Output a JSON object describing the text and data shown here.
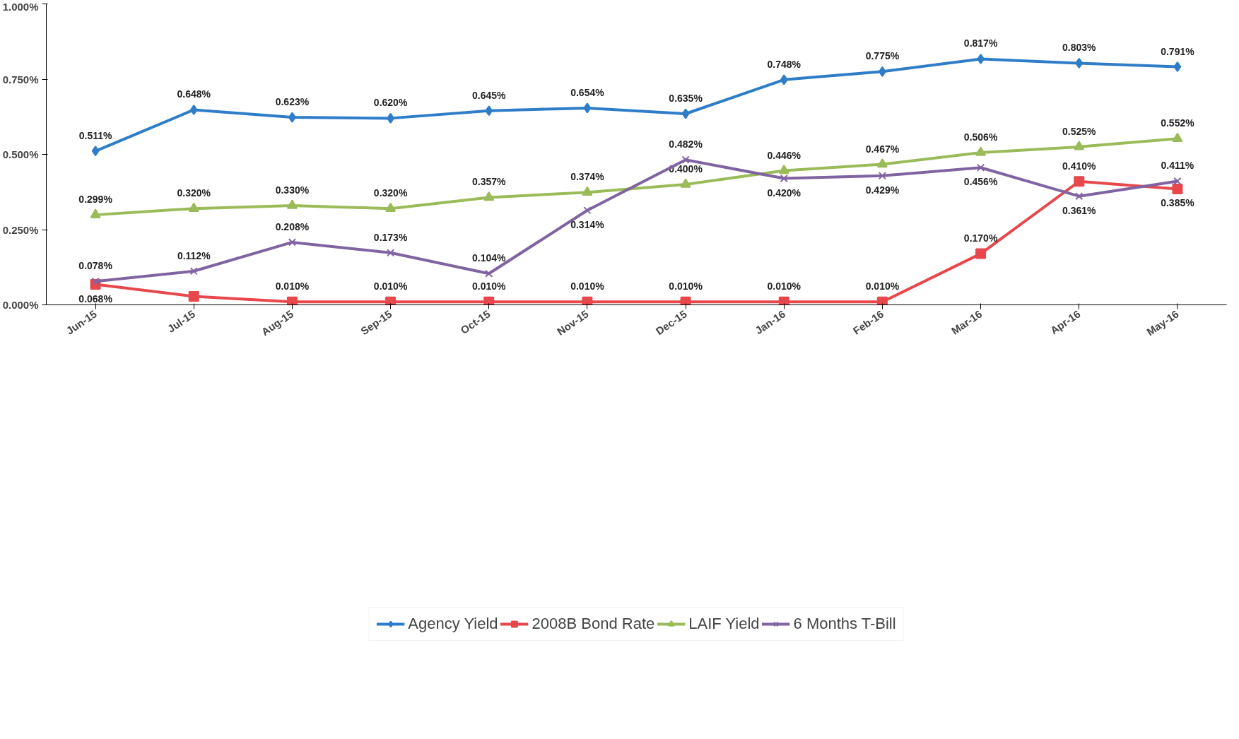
{
  "chart_data": {
    "type": "line",
    "categories": [
      "Jun-15",
      "Jul-15",
      "Aug-15",
      "Sep-15",
      "Oct-15",
      "Nov-15",
      "Dec-15",
      "Jan-16",
      "Feb-16",
      "Mar-16",
      "Apr-16",
      "May-16"
    ],
    "ylim": [
      0,
      1
    ],
    "yticks": [
      {
        "value": 0,
        "label": "0.000%"
      },
      {
        "value": 0.25,
        "label": "0.250%"
      },
      {
        "value": 0.5,
        "label": "0.500%"
      },
      {
        "value": 0.75,
        "label": "0.750%"
      },
      {
        "value": 1,
        "label": "1.000%"
      }
    ],
    "grid": false,
    "legend": "bottom",
    "line_style": "solid",
    "series": [
      {
        "name": "Agency Yield",
        "color": "#2e7dc8",
        "marker": "diamond",
        "values": [
          0.511,
          0.648,
          0.623,
          0.62,
          0.645,
          0.654,
          0.635,
          0.748,
          0.775,
          0.817,
          0.803,
          0.791
        ],
        "value_labels": [
          "0.511%",
          "0.648%",
          "0.623%",
          "0.620%",
          "0.645%",
          "0.654%",
          "0.635%",
          "0.748%",
          "0.775%",
          "0.817%",
          "0.803%",
          "0.791%"
        ]
      },
      {
        "name": "2008B Bond Rate",
        "color": "#e8474c",
        "marker": "square",
        "values": [
          0.068,
          0.028,
          0.01,
          0.01,
          0.01,
          0.01,
          0.01,
          0.01,
          0.01,
          0.17,
          0.41,
          0.385
        ],
        "value_labels": [
          "0.068%",
          null,
          "0.010%",
          "0.010%",
          "0.010%",
          "0.010%",
          "0.010%",
          "0.010%",
          "0.010%",
          "0.170%",
          "0.410%",
          "0.385%"
        ]
      },
      {
        "name": "LAIF Yield",
        "color": "#9bbb59",
        "marker": "triangle",
        "values": [
          0.299,
          0.32,
          0.33,
          0.32,
          0.357,
          0.374,
          0.4,
          0.446,
          0.467,
          0.506,
          0.525,
          0.552
        ],
        "value_labels": [
          "0.299%",
          "0.320%",
          "0.330%",
          "0.320%",
          "0.357%",
          "0.374%",
          "0.400%",
          "0.446%",
          "0.467%",
          "0.506%",
          "0.525%",
          "0.552%"
        ]
      },
      {
        "name": "6 Months T-Bill",
        "color": "#8064a2",
        "marker": "cross",
        "values": [
          0.078,
          0.112,
          0.208,
          0.173,
          0.104,
          0.314,
          0.482,
          0.42,
          0.429,
          0.456,
          0.361,
          0.411
        ],
        "value_labels": [
          "0.078%",
          "0.112%",
          "0.208%",
          "0.173%",
          "0.104%",
          "0.314%",
          "0.482%",
          "0.420%",
          "0.429%",
          "0.456%",
          "0.361%",
          "0.411%"
        ]
      }
    ]
  }
}
